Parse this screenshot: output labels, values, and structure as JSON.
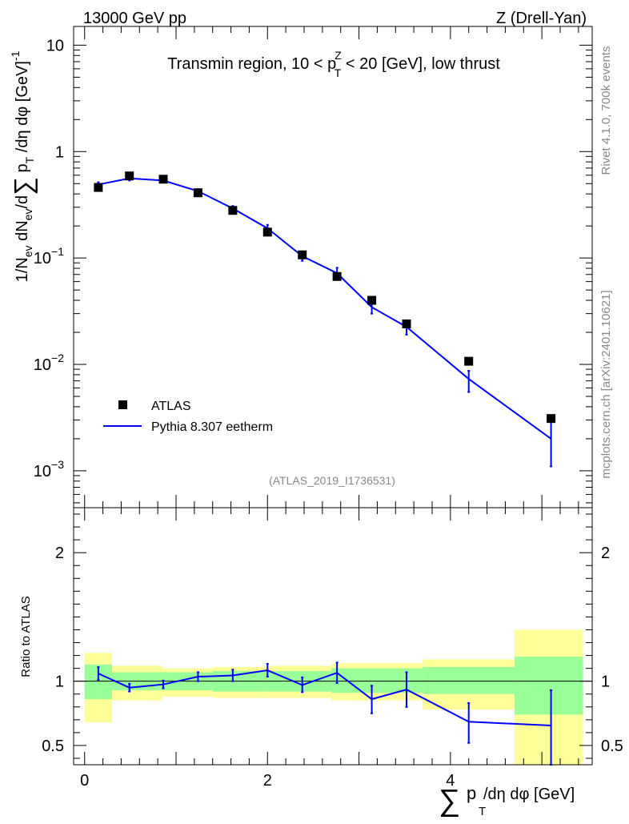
{
  "header": {
    "energy_label": "13000 GeV pp",
    "process_label": "Z (Drell-Yan)"
  },
  "side_labels": {
    "rivet": "Rivet 4.1.0,  700k events",
    "mcplots": "mcplots.cern.ch [arXiv:2401.10621]"
  },
  "chart_data": {
    "type": "line",
    "title": "Transmin region, 10 < p_T^Z < 20 [GeV], low thrust",
    "title_parts": {
      "pre": "Transmin region, 10 < p",
      "sup": "Z",
      "sub": "T",
      "post": " < 20 [GeV], low thrust"
    },
    "analysis_label": "(ATLAS_2019_I1736531)",
    "xlabel": "Σ p_T/dη dφ [GeV]",
    "xlabel_parts": {
      "sum": "∑",
      "p": "p",
      "sub": "T",
      "rest": "/dη dφ [GeV]"
    },
    "ylabel": "1/N_ev dN_ev/dΣ p_T/dη dφ [GeV]^-1",
    "ratio_ylabel": "Ratio to ATLAS",
    "xlim": [
      -0.12,
      5.55
    ],
    "ylim": [
      0.00045,
      15
    ],
    "yscale": "log",
    "ratio_ylim": [
      0.35,
      2.35
    ],
    "x_ticks": [
      0,
      2,
      4
    ],
    "x_tick_labels": [
      "0",
      "2",
      "4"
    ],
    "y_major_ticks": [
      0.001,
      0.01,
      0.1,
      1,
      10
    ],
    "y_tick_labels": [
      {
        "value": 0.001,
        "base": "10",
        "exp": "−3"
      },
      {
        "value": 0.01,
        "base": "10",
        "exp": "−2"
      },
      {
        "value": 0.1,
        "base": "10",
        "exp": "−1"
      },
      {
        "value": 1,
        "base": "1",
        "exp": ""
      },
      {
        "value": 10,
        "base": "10",
        "exp": ""
      }
    ],
    "ratio_ticks": [
      0.5,
      1,
      2
    ],
    "ratio_tick_labels": [
      "0.5",
      "1",
      "2"
    ],
    "legend": [
      {
        "label": "ATLAS",
        "type": "marker",
        "color": "#000000"
      },
      {
        "label": "Pythia 8.307 eetherm",
        "type": "line",
        "color": "#0000ff"
      }
    ],
    "bin_edges": [
      0,
      0.3,
      0.85,
      1.4,
      2.0,
      2.7,
      3.7,
      4.7,
      5.45
    ],
    "band_inner": [
      {
        "lo": 0.86,
        "hi": 1.13
      },
      {
        "lo": 0.93,
        "hi": 1.07
      },
      {
        "lo": 0.93,
        "hi": 1.07
      },
      {
        "lo": 0.92,
        "hi": 1.08
      },
      {
        "lo": 0.92,
        "hi": 1.08
      },
      {
        "lo": 0.91,
        "hi": 1.1
      },
      {
        "lo": 0.9,
        "hi": 1.11
      },
      {
        "lo": 0.74,
        "hi": 1.19
      }
    ],
    "band_outer": [
      {
        "lo": 0.68,
        "hi": 1.22
      },
      {
        "lo": 0.85,
        "hi": 1.12
      },
      {
        "lo": 0.88,
        "hi": 1.1
      },
      {
        "lo": 0.87,
        "hi": 1.11
      },
      {
        "lo": 0.87,
        "hi": 1.12
      },
      {
        "lo": 0.85,
        "hi": 1.14
      },
      {
        "lo": 0.78,
        "hi": 1.17
      },
      {
        "lo": 0.34,
        "hi": 1.4
      }
    ],
    "data_points": [
      {
        "x": 0.15,
        "y": 0.46
      },
      {
        "x": 0.49,
        "y": 0.59
      },
      {
        "x": 0.86,
        "y": 0.55
      },
      {
        "x": 1.24,
        "y": 0.41
      },
      {
        "x": 1.62,
        "y": 0.28
      },
      {
        "x": 2.0,
        "y": 0.175
      },
      {
        "x": 2.38,
        "y": 0.107
      },
      {
        "x": 2.76,
        "y": 0.067
      },
      {
        "x": 3.14,
        "y": 0.04
      },
      {
        "x": 3.52,
        "y": 0.024
      },
      {
        "x": 4.2,
        "y": 0.0107
      },
      {
        "x": 5.1,
        "y": 0.0031
      }
    ],
    "mc_points": [
      {
        "x": 0.15,
        "y": 0.49,
        "ylo": 0.47,
        "yhi": 0.515
      },
      {
        "x": 0.49,
        "y": 0.56,
        "ylo": 0.535,
        "yhi": 0.585
      },
      {
        "x": 0.86,
        "y": 0.535,
        "ylo": 0.515,
        "yhi": 0.555
      },
      {
        "x": 1.24,
        "y": 0.425,
        "ylo": 0.405,
        "yhi": 0.445
      },
      {
        "x": 1.62,
        "y": 0.292,
        "ylo": 0.277,
        "yhi": 0.308
      },
      {
        "x": 2.0,
        "y": 0.19,
        "ylo": 0.177,
        "yhi": 0.205
      },
      {
        "x": 2.38,
        "y": 0.104,
        "ylo": 0.094,
        "yhi": 0.114
      },
      {
        "x": 2.76,
        "y": 0.072,
        "ylo": 0.063,
        "yhi": 0.081
      },
      {
        "x": 3.14,
        "y": 0.0345,
        "ylo": 0.03,
        "yhi": 0.0385
      },
      {
        "x": 3.52,
        "y": 0.0225,
        "ylo": 0.019,
        "yhi": 0.026
      },
      {
        "x": 4.2,
        "y": 0.0073,
        "ylo": 0.0055,
        "yhi": 0.0087
      },
      {
        "x": 5.1,
        "y": 0.002,
        "ylo": 0.0011,
        "yhi": 0.0029
      }
    ],
    "ratio_points": [
      {
        "x": 0.15,
        "y": 1.06,
        "ylo": 1.01,
        "yhi": 1.11
      },
      {
        "x": 0.49,
        "y": 0.95,
        "ylo": 0.92,
        "yhi": 0.98
      },
      {
        "x": 0.86,
        "y": 0.975,
        "ylo": 0.945,
        "yhi": 1.005
      },
      {
        "x": 1.24,
        "y": 1.035,
        "ylo": 1.0,
        "yhi": 1.07
      },
      {
        "x": 1.62,
        "y": 1.045,
        "ylo": 1.0,
        "yhi": 1.09
      },
      {
        "x": 2.0,
        "y": 1.085,
        "ylo": 1.035,
        "yhi": 1.135
      },
      {
        "x": 2.38,
        "y": 0.97,
        "ylo": 0.915,
        "yhi": 1.03
      },
      {
        "x": 2.76,
        "y": 1.065,
        "ylo": 0.985,
        "yhi": 1.145
      },
      {
        "x": 3.14,
        "y": 0.86,
        "ylo": 0.75,
        "yhi": 0.965
      },
      {
        "x": 3.52,
        "y": 0.935,
        "ylo": 0.8,
        "yhi": 1.07
      },
      {
        "x": 4.2,
        "y": 0.685,
        "ylo": 0.52,
        "yhi": 0.83
      },
      {
        "x": 5.1,
        "y": 0.655,
        "ylo": 0.35,
        "yhi": 0.93
      }
    ],
    "colors": {
      "mc": "#0000ff",
      "data": "#000000",
      "band_inner": "#99ff99",
      "band_outer": "#ffff99",
      "label_grey": "#888888"
    }
  }
}
